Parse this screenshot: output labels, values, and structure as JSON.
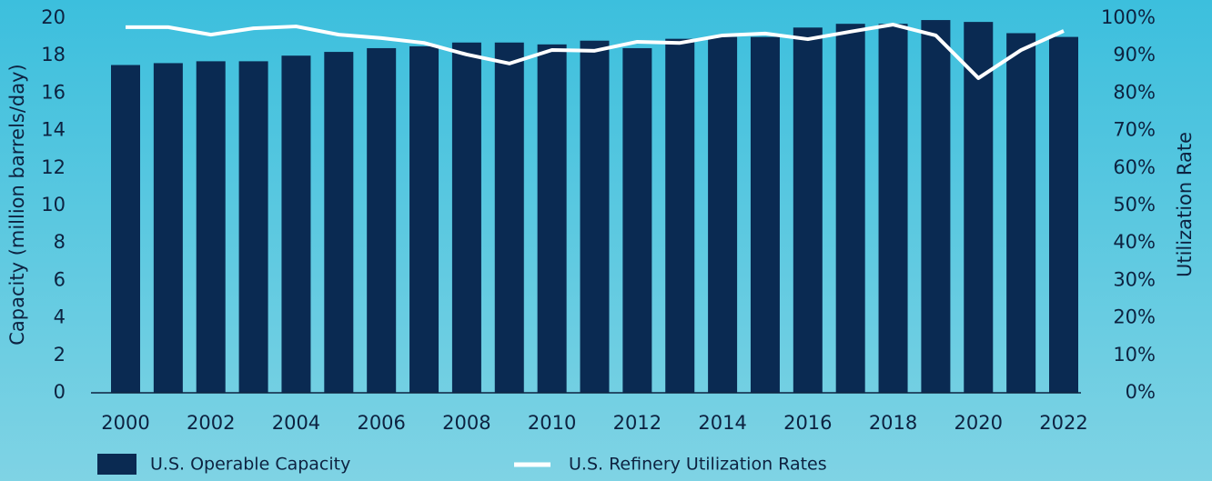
{
  "chart_data": {
    "type": "bar",
    "categories": [
      "2000",
      null,
      "2002",
      null,
      "2004",
      null,
      "2006",
      null,
      "2008",
      null,
      "2010",
      null,
      "2012",
      null,
      "2014",
      null,
      "2016",
      null,
      "2018",
      null,
      "2020",
      null,
      "2022"
    ],
    "series": [
      {
        "name": "U.S. Operable Capacity",
        "type": "bar",
        "color": "#0a2a52",
        "axis": "y",
        "values": [
          17.5,
          17.6,
          17.7,
          17.7,
          18.0,
          18.2,
          18.4,
          18.5,
          18.7,
          18.7,
          18.6,
          18.8,
          18.4,
          18.9,
          19.0,
          19.0,
          19.5,
          19.7,
          19.7,
          19.9,
          19.8,
          19.2,
          19.0
        ]
      },
      {
        "name": "U.S. Refinery Utilization Rates",
        "type": "line",
        "color": "#ffffff",
        "axis": "y2",
        "values": [
          97.6,
          97.6,
          95.6,
          97.3,
          97.8,
          95.6,
          94.7,
          93.4,
          90.3,
          87.9,
          91.5,
          91.3,
          93.7,
          93.4,
          95.4,
          95.9,
          94.4,
          96.4,
          98.3,
          95.4,
          84.0,
          91.5,
          96.6
        ]
      }
    ],
    "ylabel": "Capacity (million barrels/day)",
    "y2label": "Utilization Rate",
    "ylim": [
      0,
      20
    ],
    "yticks": [
      0,
      2,
      4,
      6,
      8,
      10,
      12,
      14,
      16,
      18,
      20
    ],
    "y2lim": [
      0,
      100
    ],
    "y2ticks": [
      {
        "value": 0,
        "label": "0%"
      },
      {
        "value": 10,
        "label": "10%"
      },
      {
        "value": 20,
        "label": "20%"
      },
      {
        "value": 30,
        "label": "30%"
      },
      {
        "value": 40,
        "label": "40%"
      },
      {
        "value": 50,
        "label": "50%"
      },
      {
        "value": 60,
        "label": "60%"
      },
      {
        "value": 70,
        "label": "70%"
      },
      {
        "value": 80,
        "label": "80%"
      },
      {
        "value": 90,
        "label": "90%"
      },
      {
        "value": 100,
        "label": "100%"
      }
    ],
    "legend": "bottom"
  }
}
